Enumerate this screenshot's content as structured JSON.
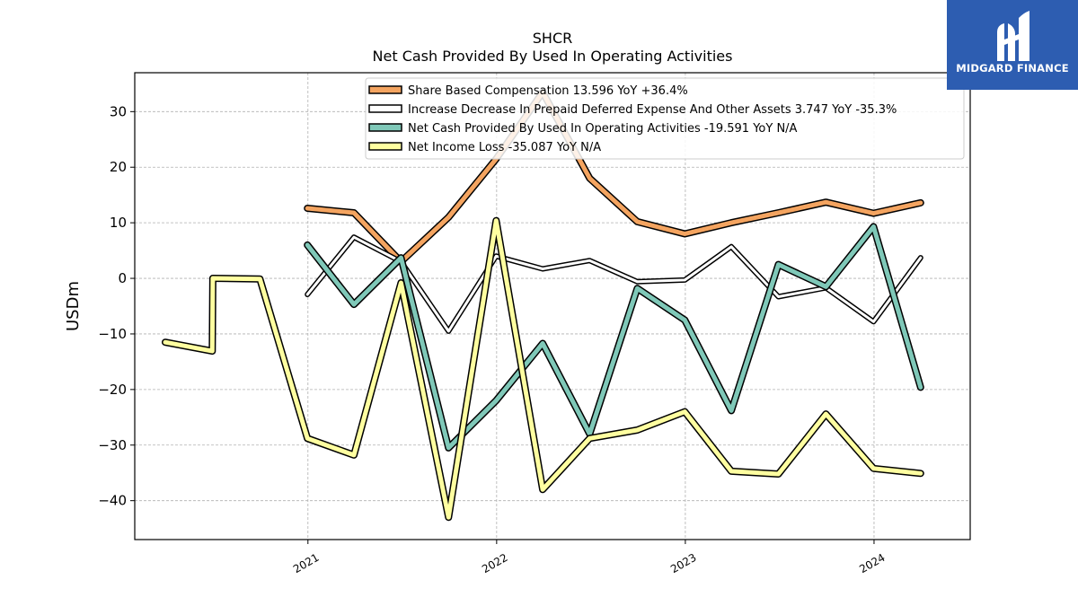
{
  "chart_data": {
    "type": "line",
    "title": "SHCR",
    "subtitle": "Net Cash Provided By Used In Operating Activities",
    "ylabel": "USDm",
    "xlabel": "",
    "ylim": [
      -47,
      37
    ],
    "yticks": [
      -40,
      -30,
      -20,
      -10,
      0,
      10,
      20,
      30
    ],
    "xlim": [
      "2020-02-01",
      "2024-07-05"
    ],
    "xticks": [
      "2021-01-01",
      "2022-01-01",
      "2023-01-01",
      "2024-01-01"
    ],
    "xtick_labels": [
      "2021",
      "2022",
      "2023",
      "2024"
    ],
    "grid": true,
    "legend_position": "top-right",
    "series": [
      {
        "name": "Share Based Compensation  13.596 YoY +36.4%",
        "color": "#f4a460",
        "width": 5,
        "points": [
          [
            "2020-12-31",
            12.6
          ],
          [
            "2021-03-31",
            11.8
          ],
          [
            "2021-06-30",
            3.0
          ],
          [
            "2021-09-30",
            11.0
          ],
          [
            "2021-12-31",
            21.5
          ],
          [
            "2022-03-31",
            33.5
          ],
          [
            "2022-06-30",
            18.0
          ],
          [
            "2022-09-30",
            10.2
          ],
          [
            "2022-12-31",
            8.0
          ],
          [
            "2023-03-31",
            10.0
          ],
          [
            "2023-06-30",
            11.8
          ],
          [
            "2023-09-30",
            13.7
          ],
          [
            "2023-12-31",
            11.7
          ],
          [
            "2024-03-31",
            13.6
          ]
        ]
      },
      {
        "name": "Increase Decrease In Prepaid Deferred Expense And Other Assets  3.747 YoY -35.3%",
        "color": "#ffffff",
        "width": 3,
        "points": [
          [
            "2020-12-31",
            -2.9
          ],
          [
            "2021-03-31",
            7.4
          ],
          [
            "2021-06-30",
            3.0
          ],
          [
            "2021-09-30",
            -9.5
          ],
          [
            "2021-12-31",
            4.0
          ],
          [
            "2022-03-31",
            1.7
          ],
          [
            "2022-06-30",
            3.2
          ],
          [
            "2022-09-30",
            -0.6
          ],
          [
            "2022-12-31",
            -0.3
          ],
          [
            "2023-03-31",
            5.7
          ],
          [
            "2023-06-30",
            -3.3
          ],
          [
            "2023-09-30",
            -1.7
          ],
          [
            "2023-12-31",
            -7.8
          ],
          [
            "2024-03-31",
            3.7
          ]
        ]
      },
      {
        "name": "Net Cash Provided By Used In Operating Activities  -19.591 YoY N/A",
        "color": "#7fc8b8",
        "width": 5,
        "points": [
          [
            "2020-12-31",
            6.0
          ],
          [
            "2021-03-31",
            -4.7
          ],
          [
            "2021-06-30",
            3.7
          ],
          [
            "2021-09-30",
            -30.5
          ],
          [
            "2021-12-31",
            -22.0
          ],
          [
            "2022-03-31",
            -11.7
          ],
          [
            "2022-06-30",
            -28.0
          ],
          [
            "2022-09-30",
            -1.8
          ],
          [
            "2022-12-31",
            -7.5
          ],
          [
            "2023-03-31",
            -23.8
          ],
          [
            "2023-06-30",
            2.5
          ],
          [
            "2023-09-30",
            -1.5
          ],
          [
            "2023-12-31",
            9.3
          ],
          [
            "2024-03-31",
            -19.6
          ]
        ]
      },
      {
        "name": "Net Income Loss  -35.087 YoY N/A",
        "color": "#ffffa0",
        "width": 5,
        "points": [
          [
            "2020-03-31",
            -11.5
          ],
          [
            "2020-06-30",
            -13.1
          ],
          [
            "2020-07-01",
            0.0
          ],
          [
            "2020-09-30",
            -0.1
          ],
          [
            "2020-12-31",
            -28.8
          ],
          [
            "2021-03-31",
            -31.8
          ],
          [
            "2021-06-30",
            -0.8
          ],
          [
            "2021-09-30",
            -43.0
          ],
          [
            "2021-12-31",
            10.4
          ],
          [
            "2022-03-31",
            -38.0
          ],
          [
            "2022-06-30",
            -28.8
          ],
          [
            "2022-09-30",
            -27.3
          ],
          [
            "2022-12-31",
            -24.0
          ],
          [
            "2023-03-31",
            -34.7
          ],
          [
            "2023-06-30",
            -35.2
          ],
          [
            "2023-09-30",
            -24.4
          ],
          [
            "2023-12-31",
            -34.2
          ],
          [
            "2024-03-31",
            -35.1
          ]
        ]
      }
    ]
  },
  "logo": {
    "text": "MIDGARD FINANCE",
    "color": "#2d5db1"
  }
}
